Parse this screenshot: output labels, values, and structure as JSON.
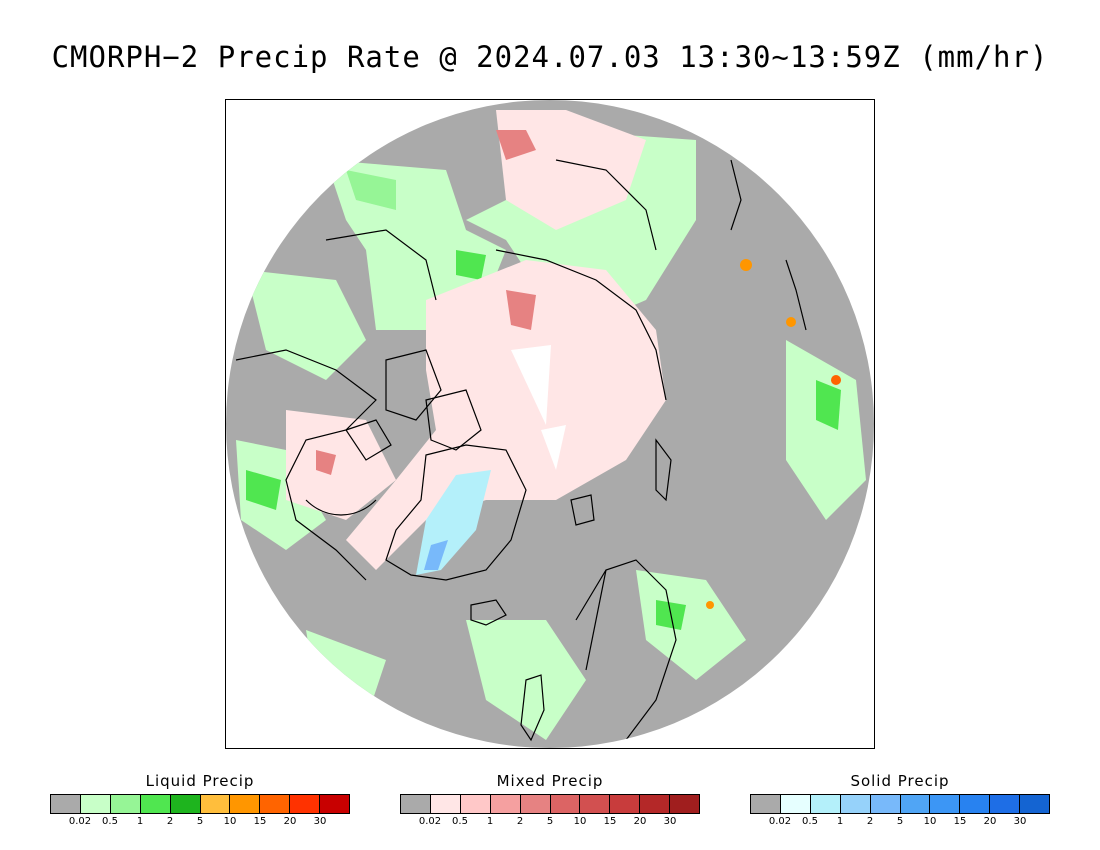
{
  "title": "CMORPH−2 Precip Rate @ 2024.07.03 13:30∼13:59Z (mm/hr)",
  "map": {
    "projection": "north-polar-stereographic",
    "background_color": "#aaaaaa",
    "coastline_color": "#000000"
  },
  "legends": [
    {
      "id": "liquid",
      "title": "Liquid Precip",
      "colors": [
        "#aaaaaa",
        "#c8ffc8",
        "#96f596",
        "#50e650",
        "#1eb41e",
        "#ffbe3c",
        "#ff9600",
        "#ff6400",
        "#ff3200",
        "#c80000"
      ],
      "ticks": [
        "0.02",
        "0.5",
        "1",
        "2",
        "5",
        "10",
        "15",
        "20",
        "30"
      ]
    },
    {
      "id": "mixed",
      "title": "Mixed Precip",
      "colors": [
        "#aaaaaa",
        "#ffe6e6",
        "#ffc8c8",
        "#f5a0a0",
        "#e68282",
        "#dc6464",
        "#d25050",
        "#c83c3c",
        "#b42828",
        "#a01e1e"
      ],
      "ticks": [
        "0.02",
        "0.5",
        "1",
        "2",
        "5",
        "10",
        "15",
        "20",
        "30"
      ]
    },
    {
      "id": "solid",
      "title": "Solid Precip",
      "colors": [
        "#aaaaaa",
        "#e6ffff",
        "#b4f0fa",
        "#96d2fa",
        "#78b9fa",
        "#50a5f5",
        "#3c96f5",
        "#2882f0",
        "#1e6ee6",
        "#1464d2"
      ],
      "ticks": [
        "0.02",
        "0.5",
        "1",
        "2",
        "5",
        "10",
        "15",
        "20",
        "30"
      ]
    }
  ]
}
